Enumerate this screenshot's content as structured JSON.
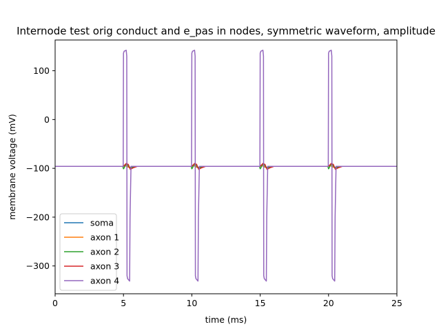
{
  "chart_data": {
    "type": "line",
    "title": "Internode test orig conduct and e_pas in nodes, symmetric waveform, amplitude",
    "xlabel": "time (ms)",
    "ylabel": "membrane voltage (mV)",
    "xlim": [
      0,
      25
    ],
    "ylim": [
      -357,
      163
    ],
    "xticks": [
      0,
      5,
      10,
      15,
      20,
      25
    ],
    "yticks": [
      100,
      0,
      -100,
      -200,
      -300
    ],
    "grid": false,
    "legend_position": "lower-left",
    "series": [
      {
        "name": "soma",
        "color": "#1f77b4",
        "x": [
          0,
          5.0,
          5.1,
          5.3,
          5.5,
          5.8,
          10.0,
          10.1,
          10.3,
          10.5,
          10.8,
          15.0,
          15.1,
          15.3,
          15.5,
          15.8,
          20.0,
          20.1,
          20.3,
          20.5,
          20.8,
          25
        ],
        "y": [
          -96,
          -96,
          -94,
          -97,
          -98,
          -96,
          -96,
          -94,
          -97,
          -98,
          -96,
          -96,
          -94,
          -97,
          -98,
          -96,
          -96,
          -94,
          -97,
          -98,
          -96,
          -96
        ]
      },
      {
        "name": "axon 1",
        "color": "#ff7f0e",
        "x": [
          0,
          5.0,
          5.1,
          5.3,
          5.5,
          5.8,
          10.0,
          10.1,
          10.3,
          10.5,
          10.8,
          15.0,
          15.1,
          15.3,
          15.5,
          15.8,
          20.0,
          20.1,
          20.3,
          20.5,
          20.8,
          25
        ],
        "y": [
          -96,
          -96,
          -93,
          -97,
          -99,
          -96,
          -96,
          -93,
          -97,
          -99,
          -96,
          -96,
          -93,
          -97,
          -99,
          -96,
          -96,
          -93,
          -97,
          -99,
          -96,
          -96
        ]
      },
      {
        "name": "axon 2",
        "color": "#2ca02c",
        "x": [
          0,
          4.95,
          5.0,
          5.05,
          5.15,
          5.3,
          5.45,
          5.6,
          5.9,
          9.95,
          10.0,
          10.05,
          10.15,
          10.3,
          10.45,
          10.6,
          10.9,
          14.95,
          15.0,
          15.05,
          15.15,
          15.3,
          15.45,
          15.6,
          15.9,
          19.95,
          20.0,
          20.05,
          20.15,
          20.3,
          20.45,
          20.6,
          20.9,
          25
        ],
        "y": [
          -96,
          -96,
          -101,
          -99,
          -92,
          -93,
          -99,
          -98,
          -96,
          -96,
          -101,
          -99,
          -92,
          -93,
          -99,
          -98,
          -96,
          -96,
          -101,
          -99,
          -92,
          -93,
          -99,
          -98,
          -96,
          -96,
          -101,
          -99,
          -92,
          -93,
          -99,
          -98,
          -96,
          -96
        ]
      },
      {
        "name": "axon 3",
        "color": "#d62728",
        "x": [
          0,
          5.0,
          5.1,
          5.2,
          5.35,
          5.5,
          5.7,
          6.0,
          10.0,
          10.1,
          10.2,
          10.35,
          10.5,
          10.7,
          11.0,
          15.0,
          15.1,
          15.2,
          15.35,
          15.5,
          15.7,
          16.0,
          20.0,
          20.1,
          20.2,
          20.35,
          20.5,
          20.7,
          21.0,
          25
        ],
        "y": [
          -96,
          -96,
          -93,
          -90,
          -92,
          -102,
          -99,
          -96,
          -96,
          -93,
          -90,
          -92,
          -102,
          -99,
          -96,
          -96,
          -93,
          -90,
          -92,
          -102,
          -99,
          -96,
          -96,
          -93,
          -90,
          -92,
          -102,
          -99,
          -96,
          -96
        ]
      },
      {
        "name": "axon 4",
        "color": "#9467bd",
        "x": [
          0,
          4.98,
          5.0,
          5.05,
          5.2,
          5.24,
          5.26,
          5.3,
          5.45,
          5.48,
          5.55,
          9.98,
          10.0,
          10.05,
          10.2,
          10.24,
          10.26,
          10.3,
          10.45,
          10.48,
          10.55,
          14.98,
          15.0,
          15.05,
          15.2,
          15.24,
          15.26,
          15.3,
          15.45,
          15.48,
          15.55,
          19.98,
          20.0,
          20.05,
          20.2,
          20.24,
          20.26,
          20.3,
          20.45,
          20.48,
          20.55,
          25
        ],
        "y": [
          -96,
          -96,
          136,
          140,
          142,
          130,
          -320,
          -326,
          -331,
          -200,
          -96,
          -96,
          136,
          140,
          142,
          130,
          -320,
          -326,
          -331,
          -200,
          -96,
          -96,
          136,
          140,
          142,
          130,
          -320,
          -326,
          -331,
          -200,
          -96,
          -96,
          136,
          140,
          142,
          130,
          -320,
          -326,
          -331,
          -200,
          -96,
          -96
        ]
      }
    ]
  }
}
